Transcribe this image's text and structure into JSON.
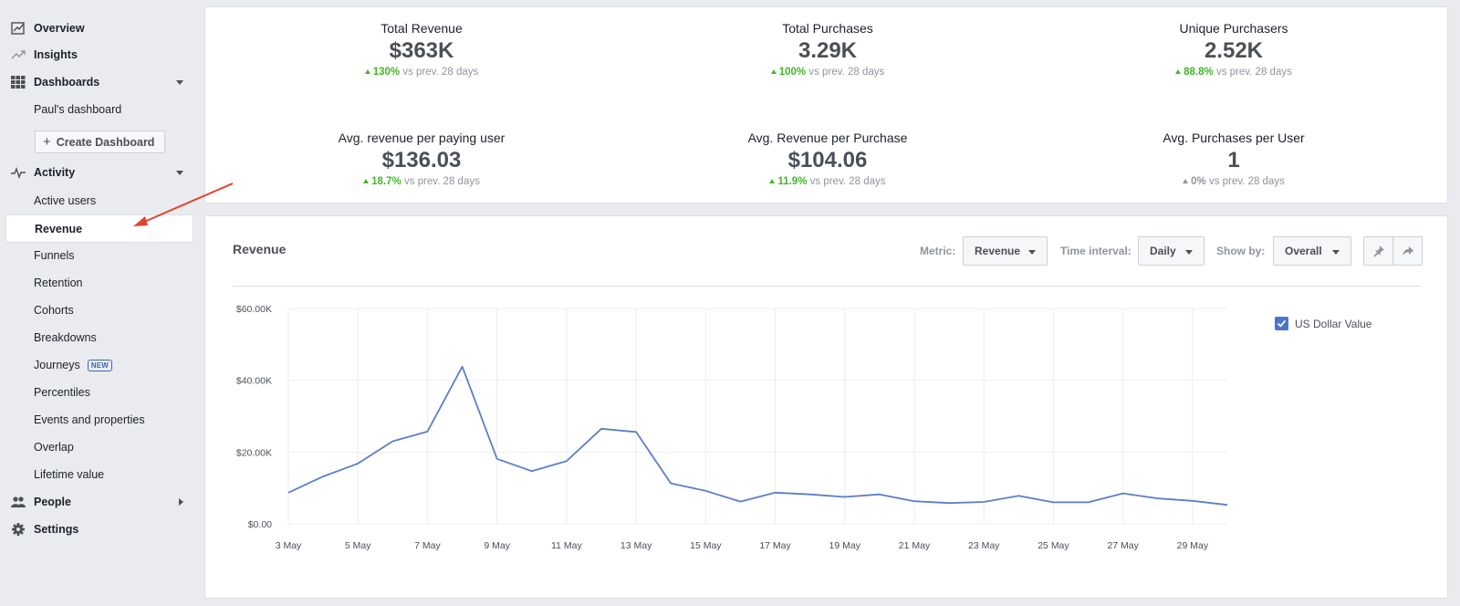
{
  "sidebar": {
    "items": [
      {
        "id": "overview",
        "label": "Overview",
        "icon": "chart-line-icon",
        "top": true
      },
      {
        "id": "insights",
        "label": "Insights",
        "icon": "trend-icon",
        "top": true
      },
      {
        "id": "dashboards",
        "label": "Dashboards",
        "icon": "grid-icon",
        "top": true,
        "expanded": true
      },
      {
        "id": "pauls-dashboard",
        "label": "Paul's dashboard"
      },
      {
        "id": "activity",
        "label": "Activity",
        "icon": "pulse-icon",
        "top": true,
        "expanded": true
      },
      {
        "id": "active-users",
        "label": "Active users"
      },
      {
        "id": "revenue",
        "label": "Revenue",
        "active": true
      },
      {
        "id": "funnels",
        "label": "Funnels"
      },
      {
        "id": "retention",
        "label": "Retention"
      },
      {
        "id": "cohorts",
        "label": "Cohorts"
      },
      {
        "id": "breakdowns",
        "label": "Breakdowns"
      },
      {
        "id": "journeys",
        "label": "Journeys",
        "badge": "NEW"
      },
      {
        "id": "percentiles",
        "label": "Percentiles"
      },
      {
        "id": "events-and-properties",
        "label": "Events and properties"
      },
      {
        "id": "overlap",
        "label": "Overlap"
      },
      {
        "id": "lifetime-value",
        "label": "Lifetime value"
      },
      {
        "id": "people",
        "label": "People",
        "icon": "people-icon",
        "top": true,
        "collapsed": true
      },
      {
        "id": "settings",
        "label": "Settings",
        "icon": "gear-icon",
        "top": true
      }
    ],
    "create_dashboard_label": "Create Dashboard"
  },
  "metrics": [
    {
      "title": "Total Revenue",
      "value": "$363K",
      "delta": "130%",
      "suffix": "vs prev. 28 days",
      "trend": "up"
    },
    {
      "title": "Total Purchases",
      "value": "3.29K",
      "delta": "100%",
      "suffix": "vs prev. 28 days",
      "trend": "up"
    },
    {
      "title": "Unique Purchasers",
      "value": "2.52K",
      "delta": "88.8%",
      "suffix": "vs prev. 28 days",
      "trend": "up"
    },
    {
      "title": "Avg. revenue per paying user",
      "value": "$136.03",
      "delta": "18.7%",
      "suffix": "vs prev. 28 days",
      "trend": "up"
    },
    {
      "title": "Avg. Revenue per Purchase",
      "value": "$104.06",
      "delta": "11.9%",
      "suffix": "vs prev. 28 days",
      "trend": "up"
    },
    {
      "title": "Avg. Purchases per User",
      "value": "1",
      "delta": "0%",
      "suffix": "vs prev. 28 days",
      "trend": "flat"
    }
  ],
  "chart_panel": {
    "title": "Revenue",
    "metric_label": "Metric:",
    "metric_value": "Revenue",
    "interval_label": "Time interval:",
    "interval_value": "Daily",
    "showby_label": "Show by:",
    "showby_value": "Overall",
    "pin_icon": "pin-icon",
    "share_icon": "share-icon"
  },
  "chart_data": {
    "type": "line",
    "x": [
      "3 May",
      "4 May",
      "5 May",
      "6 May",
      "7 May",
      "8 May",
      "9 May",
      "10 May",
      "11 May",
      "12 May",
      "13 May",
      "14 May",
      "15 May",
      "16 May",
      "17 May",
      "18 May",
      "19 May",
      "20 May",
      "21 May",
      "22 May",
      "23 May",
      "24 May",
      "25 May",
      "26 May",
      "27 May",
      "28 May",
      "29 May",
      "30 May"
    ],
    "x_tick_labels": [
      "3 May",
      "5 May",
      "7 May",
      "9 May",
      "11 May",
      "13 May",
      "15 May",
      "17 May",
      "19 May",
      "21 May",
      "23 May",
      "25 May",
      "27 May",
      "29 May"
    ],
    "series": [
      {
        "name": "US Dollar Value",
        "color": "#5b7fc7",
        "values": [
          8700,
          13200,
          16800,
          23000,
          25700,
          43800,
          18100,
          14700,
          17500,
          26500,
          25600,
          11300,
          9200,
          6200,
          8700,
          8200,
          7500,
          8200,
          6300,
          5800,
          6100,
          7800,
          6000,
          6000,
          8500,
          7100,
          6400,
          5300
        ]
      }
    ],
    "y_tick_labels": [
      "$0.00",
      "$20.00K",
      "$40.00K",
      "$60.00K"
    ],
    "ylim": [
      0,
      60000
    ],
    "grid": true,
    "legend": "top-right"
  },
  "annotation": {
    "arrow_color": "#e0442b"
  }
}
